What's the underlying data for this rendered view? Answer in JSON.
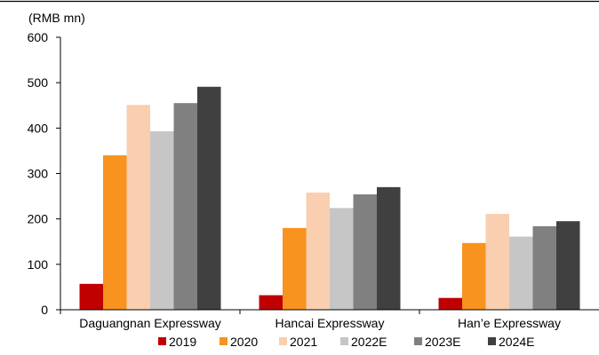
{
  "chart_data": {
    "type": "bar",
    "title": "",
    "unit_label": "(RMB mn)",
    "xlabel": "",
    "ylabel": "",
    "categories": [
      "Daguangnan Expressway",
      "Hancai Expressway",
      "Han’e Expressway"
    ],
    "ylim": [
      0,
      600
    ],
    "yticks": [
      0,
      100,
      200,
      300,
      400,
      500,
      600
    ],
    "grid": false,
    "legend_position": "bottom",
    "series": [
      {
        "name": "2019",
        "color": "#c00000",
        "values": [
          57,
          32,
          26
        ]
      },
      {
        "name": "2020",
        "color": "#f7931e",
        "values": [
          340,
          180,
          147
        ]
      },
      {
        "name": "2021",
        "color": "#f9cfb0",
        "values": [
          451,
          258,
          211
        ]
      },
      {
        "name": "2022E",
        "color": "#c6c6c6",
        "values": [
          393,
          224,
          161
        ]
      },
      {
        "name": "2023E",
        "color": "#808080",
        "values": [
          455,
          254,
          184
        ]
      },
      {
        "name": "2024E",
        "color": "#404040",
        "values": [
          491,
          270,
          195
        ]
      }
    ]
  }
}
